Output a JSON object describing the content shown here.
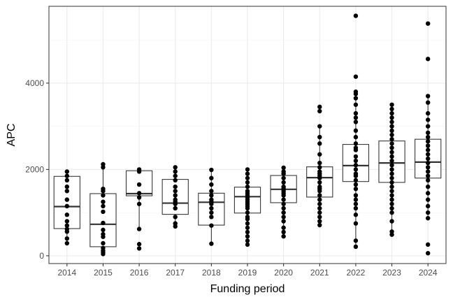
{
  "chart_data": {
    "type": "box",
    "xlabel": "Funding period",
    "ylabel": "APC",
    "ylim": [
      -180,
      5780
    ],
    "yticks": [
      0,
      2000,
      4000
    ],
    "grid": true,
    "theme": "ggplot2 bw",
    "categories": [
      "2014",
      "2015",
      "2016",
      "2017",
      "2018",
      "2019",
      "2020",
      "2021",
      "2022",
      "2023",
      "2024"
    ],
    "boxes": [
      {
        "q1": 630,
        "median": 1140,
        "q3": 1840,
        "whisker_low": 290,
        "whisker_high": 1960
      },
      {
        "q1": 210,
        "median": 730,
        "q3": 1440,
        "whisker_low": 40,
        "whisker_high": 2120
      },
      {
        "q1": 1390,
        "median": 1440,
        "q3": 1970,
        "whisker_low": 620,
        "whisker_high": 2000
      },
      {
        "q1": 960,
        "median": 1220,
        "q3": 1770,
        "whisker_low": 680,
        "whisker_high": 2050
      },
      {
        "q1": 710,
        "median": 1240,
        "q3": 1450,
        "whisker_low": 280,
        "whisker_high": 1990
      },
      {
        "q1": 990,
        "median": 1370,
        "q3": 1590,
        "whisker_low": 260,
        "whisker_high": 2000
      },
      {
        "q1": 1230,
        "median": 1540,
        "q3": 1860,
        "whisker_low": 450,
        "whisker_high": 2040
      },
      {
        "q1": 1360,
        "median": 1810,
        "q3": 2060,
        "whisker_low": 710,
        "whisker_high": 3000
      },
      {
        "q1": 1720,
        "median": 2090,
        "q3": 2580,
        "whisker_low": 210,
        "whisker_high": 3800
      },
      {
        "q1": 1700,
        "median": 2150,
        "q3": 2660,
        "whisker_low": 490,
        "whisker_high": 3500
      },
      {
        "q1": 1800,
        "median": 2170,
        "q3": 2700,
        "whisker_low": 870,
        "whisker_high": 3700
      }
    ],
    "points": [
      [
        290,
        400,
        560,
        620,
        700,
        800,
        950,
        1150,
        1300,
        1500,
        1600,
        1750,
        1850,
        1950
      ],
      [
        40,
        80,
        120,
        180,
        290,
        440,
        500,
        600,
        760,
        1020,
        1150,
        1250,
        1400,
        1500,
        1550,
        2050,
        2120
      ],
      [
        170,
        270,
        620,
        1200,
        1350,
        1450,
        1650,
        1950,
        2000
      ],
      [
        680,
        750,
        900,
        1100,
        1200,
        1250,
        1300,
        1400,
        1500,
        1600,
        1750,
        1850,
        1950,
        2050
      ],
      [
        280,
        700,
        900,
        1000,
        1100,
        1200,
        1250,
        1300,
        1400,
        1500,
        1650,
        1800,
        1990
      ],
      [
        260,
        350,
        450,
        550,
        650,
        750,
        850,
        900,
        1000,
        1100,
        1150,
        1200,
        1250,
        1300,
        1350,
        1400,
        1450,
        1500,
        1600,
        1700,
        1800,
        1900,
        2000
      ],
      [
        450,
        550,
        650,
        800,
        900,
        1000,
        1100,
        1200,
        1300,
        1400,
        1450,
        1500,
        1550,
        1600,
        1700,
        1800,
        1900,
        1950,
        2040
      ],
      [
        710,
        800,
        900,
        1000,
        1100,
        1200,
        1300,
        1400,
        1500,
        1550,
        1600,
        1700,
        1800,
        1850,
        1900,
        1950,
        2050,
        2150,
        2350,
        2600,
        2750,
        3000,
        3350,
        3450
      ],
      [
        210,
        350,
        750,
        950,
        1100,
        1200,
        1300,
        1400,
        1550,
        1650,
        1750,
        1850,
        1900,
        2000,
        2100,
        2200,
        2300,
        2450,
        2500,
        2600,
        2750,
        2900,
        3100,
        3200,
        3300,
        3500,
        3650,
        3750,
        3800,
        4150,
        5560
      ],
      [
        490,
        560,
        800,
        1000,
        1100,
        1200,
        1300,
        1400,
        1500,
        1600,
        1700,
        1800,
        1900,
        2000,
        2100,
        2200,
        2300,
        2400,
        2500,
        2600,
        2700,
        2800,
        2900,
        3000,
        3100,
        3200,
        3300,
        3400,
        3500
      ],
      [
        60,
        260,
        870,
        1000,
        1150,
        1300,
        1450,
        1600,
        1750,
        1850,
        1950,
        2050,
        2150,
        2250,
        2350,
        2450,
        2550,
        2650,
        2750,
        2850,
        3000,
        3150,
        3300,
        3550,
        3700,
        4560,
        5380
      ]
    ]
  }
}
